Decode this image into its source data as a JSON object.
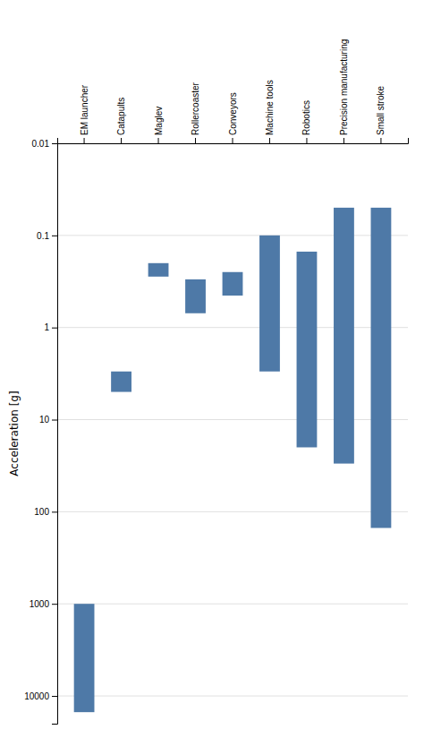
{
  "chart_data": {
    "type": "bar",
    "ylabel": "Acceleration [g]",
    "categories": [
      "EM launcher",
      "Catapults",
      "Maglev",
      "Rollercoaster",
      "Conveyors",
      "Machine tools",
      "Robotics",
      "Precision manufacturing",
      "Small stroke"
    ],
    "low": [
      1000,
      3.0,
      0.2,
      0.3,
      0.25,
      0.1,
      0.15,
      0.05,
      0.05
    ],
    "values": [
      15000,
      5.0,
      0.28,
      0.7,
      0.45,
      3.0,
      20.0,
      30.0,
      150.0
    ],
    "log": "y",
    "ylim": [
      20000,
      0.01
    ],
    "yticks": [
      0.01,
      0.1,
      1,
      10,
      100,
      1000,
      10000
    ],
    "grid": true
  }
}
